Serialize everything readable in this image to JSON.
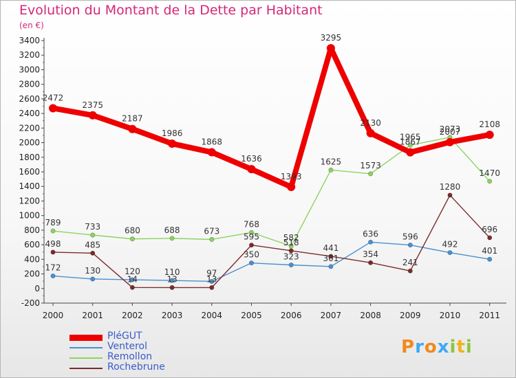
{
  "title": "Evolution du Montant de la Dette par Habitant",
  "subtitle": "(en €)",
  "brand": {
    "letters": [
      "P",
      "r",
      "o",
      "x",
      "i",
      "t",
      "i"
    ],
    "colors": [
      "#f08a1c",
      "#3fa9f5",
      "#f08a1c",
      "#3fa9f5",
      "#8cc63f",
      "#f0b21c",
      "#8cc63f"
    ]
  },
  "chart_data": {
    "type": "line",
    "x": [
      "2000",
      "2001",
      "2002",
      "2003",
      "2004",
      "2005",
      "2006",
      "2007",
      "2008",
      "2009",
      "2010",
      "2011"
    ],
    "ylim": [
      -200,
      3400
    ],
    "yticks": [
      -200,
      0,
      200,
      400,
      600,
      800,
      1000,
      1200,
      1400,
      1600,
      1800,
      2000,
      2200,
      2400,
      2600,
      2800,
      3000,
      3200,
      3400
    ],
    "grid": false,
    "legend": "bottom-left",
    "series": [
      {
        "name": "PléGUT",
        "color": "#ee0000",
        "values": [
          2472,
          2375,
          2187,
          1986,
          1868,
          1636,
          1393,
          3295,
          2130,
          1867,
          2007,
          2108
        ],
        "labels": [
          "2472",
          "2375",
          "2187",
          "1986",
          "1868",
          "1636",
          "1393",
          "3295",
          "2130",
          "1867",
          "2007",
          "2108"
        ]
      },
      {
        "name": "Venterol",
        "color": "#4a8fd0",
        "values": [
          172,
          130,
          120,
          110,
          97,
          350,
          323,
          301,
          636,
          596,
          492,
          401
        ],
        "labels": [
          "172",
          "130",
          "120",
          "110",
          "97",
          "350",
          "323",
          "301",
          "636",
          "596",
          "492",
          "401"
        ]
      },
      {
        "name": "Remollon",
        "color": "#8dd35f",
        "values": [
          789,
          733,
          680,
          688,
          673,
          768,
          582,
          1625,
          1573,
          1965,
          2073,
          1470
        ],
        "labels": [
          "789",
          "733",
          "680",
          "688",
          "673",
          "768",
          "582",
          "1625",
          "1573",
          "1965",
          "2073",
          "1470"
        ]
      },
      {
        "name": "Rochebrune",
        "color": "#7b2a2a",
        "values": [
          498,
          485,
          14,
          13,
          13,
          595,
          518,
          441,
          354,
          241,
          1280,
          696
        ],
        "labels": [
          "498",
          "485",
          "14",
          "13",
          "13",
          "595",
          "518",
          "441",
          "354",
          "241",
          "1280",
          "696"
        ]
      }
    ]
  }
}
